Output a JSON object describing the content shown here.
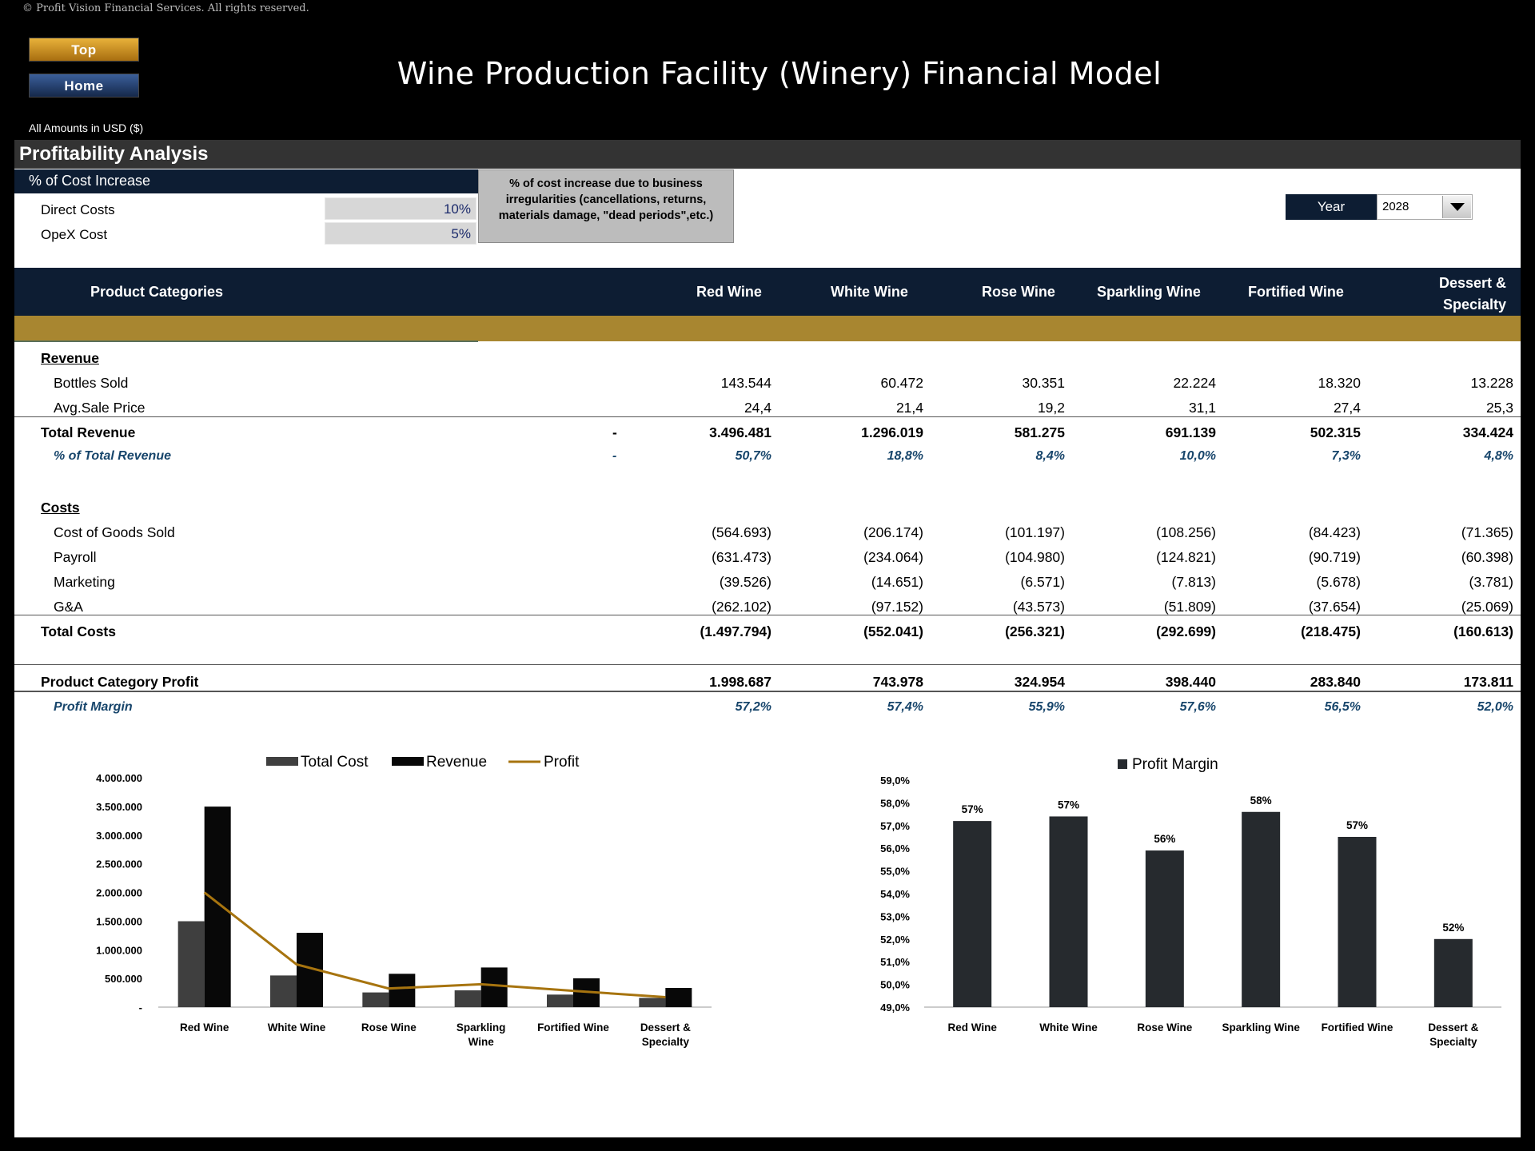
{
  "copyright": "© Profit Vision Financial Services. All rights reserved.",
  "nav": {
    "top_label": "Top",
    "home_label": "Home"
  },
  "title": "Wine Production Facility (Winery) Financial Model",
  "amounts_note": "All Amounts in  USD ($)",
  "section_title": "Profitability Analysis",
  "cost_increase": {
    "heading": "% of Cost Increase",
    "rows": [
      {
        "label": "Direct Costs",
        "value": "10%"
      },
      {
        "label": "OpeX Cost",
        "value": "5%"
      }
    ],
    "note": "% of cost increase due to business irregularities (cancellations, returns, materials damage, \"dead periods\",etc.)"
  },
  "year": {
    "label": "Year",
    "value": "2028"
  },
  "table": {
    "header_label": "Product Categories",
    "columns": [
      "Red Wine",
      "White Wine",
      "Rose Wine",
      "Sparkling Wine",
      "Fortified Wine",
      "Dessert & Specialty"
    ],
    "revenue_label": "Revenue",
    "bottles_sold": {
      "label": "Bottles Sold",
      "values": [
        "143.544",
        "60.472",
        "30.351",
        "22.224",
        "18.320",
        "13.228"
      ]
    },
    "avg_price": {
      "label": "Avg.Sale Price",
      "values": [
        "24,4",
        "21,4",
        "19,2",
        "31,1",
        "27,4",
        "25,3"
      ]
    },
    "total_revenue": {
      "label": "Total Revenue",
      "dash": "-",
      "values": [
        "3.496.481",
        "1.296.019",
        "581.275",
        "691.139",
        "502.315",
        "334.424"
      ]
    },
    "pct_revenue": {
      "label": "% of Total Revenue",
      "dash": "-",
      "values": [
        "50,7%",
        "18,8%",
        "8,4%",
        "10,0%",
        "7,3%",
        "4,8%"
      ]
    },
    "costs_label": "Costs",
    "cogs": {
      "label": "Cost of Goods Sold",
      "values": [
        "(564.693)",
        "(206.174)",
        "(101.197)",
        "(108.256)",
        "(84.423)",
        "(71.365)"
      ]
    },
    "payroll": {
      "label": "Payroll",
      "values": [
        "(631.473)",
        "(234.064)",
        "(104.980)",
        "(124.821)",
        "(90.719)",
        "(60.398)"
      ]
    },
    "marketing": {
      "label": "Marketing",
      "values": [
        "(39.526)",
        "(14.651)",
        "(6.571)",
        "(7.813)",
        "(5.678)",
        "(3.781)"
      ]
    },
    "ga": {
      "label": "G&A",
      "values": [
        "(262.102)",
        "(97.152)",
        "(43.573)",
        "(51.809)",
        "(37.654)",
        "(25.069)"
      ]
    },
    "total_costs": {
      "label": "Total Costs",
      "values": [
        "(1.497.794)",
        "(552.041)",
        "(256.321)",
        "(292.699)",
        "(218.475)",
        "(160.613)"
      ]
    },
    "profit": {
      "label": "Product Category Profit",
      "values": [
        "1.998.687",
        "743.978",
        "324.954",
        "398.440",
        "283.840",
        "173.811"
      ]
    },
    "margin": {
      "label": "Profit Margin",
      "values": [
        "57,2%",
        "57,4%",
        "55,9%",
        "57,6%",
        "56,5%",
        "52,0%"
      ]
    }
  },
  "chart_data": [
    {
      "type": "bar",
      "categories": [
        "Red Wine",
        "White Wine",
        "Rose Wine",
        "Sparkling Wine",
        "Fortified Wine",
        "Dessert & Specialty"
      ],
      "series": [
        {
          "name": "Total Cost",
          "type": "bar",
          "color": "#3f3f3f",
          "values": [
            1497794,
            552041,
            256321,
            292699,
            218475,
            160613
          ]
        },
        {
          "name": "Revenue",
          "type": "bar",
          "color": "#080808",
          "values": [
            3496481,
            1296019,
            581275,
            691139,
            502315,
            334424
          ]
        },
        {
          "name": "Profit",
          "type": "line",
          "color": "#a7740f",
          "values": [
            1998687,
            743978,
            324954,
            398440,
            283840,
            173811
          ]
        }
      ],
      "ylim": [
        0,
        4000000
      ],
      "yticks": [
        "4.000.000",
        "3.500.000",
        "3.000.000",
        "2.500.000",
        "2.000.000",
        "1.500.000",
        "1.000.000",
        "500.000",
        "-"
      ],
      "legend": "top"
    },
    {
      "type": "bar",
      "categories": [
        "Red Wine",
        "White Wine",
        "Rose Wine",
        "Sparkling Wine",
        "Fortified Wine",
        "Dessert & Specialty"
      ],
      "series": [
        {
          "name": "Profit Margin",
          "color": "#262a2e",
          "values": [
            57.2,
            57.4,
            55.9,
            57.6,
            56.5,
            52.0
          ],
          "labels": [
            "57%",
            "57%",
            "56%",
            "58%",
            "57%",
            "52%"
          ]
        }
      ],
      "ylim": [
        49,
        59
      ],
      "yticks": [
        "59,0%",
        "58,0%",
        "57,0%",
        "56,0%",
        "55,0%",
        "54,0%",
        "53,0%",
        "52,0%",
        "51,0%",
        "50,0%",
        "49,0%"
      ],
      "legend": "top"
    }
  ]
}
